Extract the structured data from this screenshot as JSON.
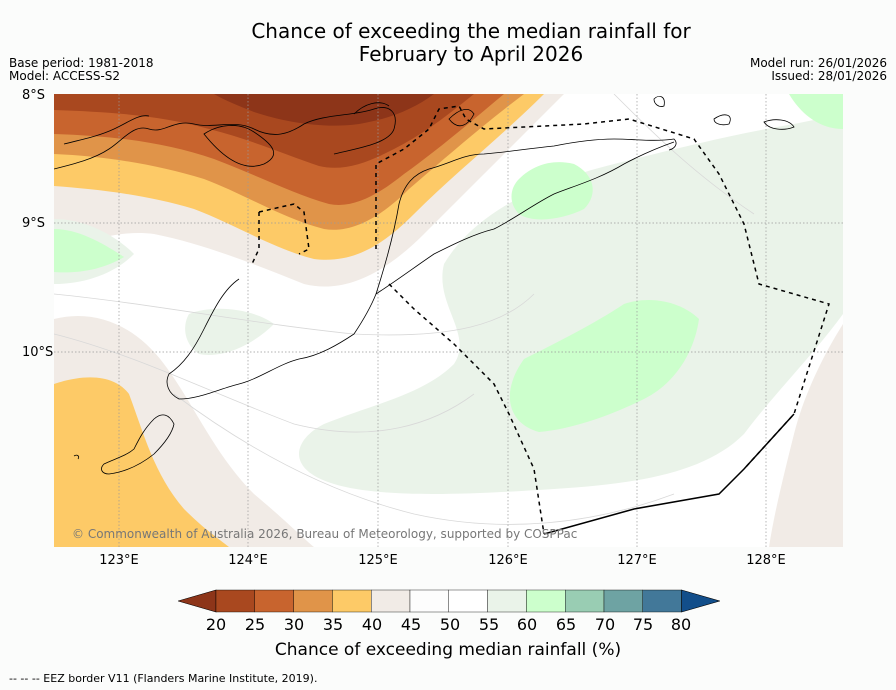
{
  "title": {
    "line1": "Chance of exceeding the median rainfall for",
    "line2": "February to April 2026"
  },
  "meta_left": {
    "base_period": "Base period: 1981-2018",
    "model": "Model: ACCESS-S2"
  },
  "meta_right": {
    "model_run": "Model run: 26/01/2026",
    "issued": "Issued: 28/01/2026"
  },
  "map": {
    "lat_labels": [
      "8°S",
      "9°S",
      "10°S"
    ],
    "lon_labels": [
      "123°E",
      "124°E",
      "125°E",
      "126°E",
      "127°E",
      "128°E"
    ],
    "copyright": "© Commonwealth of Australia 2026, Bureau of Meteorology, supported by COSPPac"
  },
  "colorbar": {
    "ticks": [
      "20",
      "25",
      "30",
      "35",
      "40",
      "45",
      "50",
      "55",
      "60",
      "65",
      "70",
      "75",
      "80"
    ],
    "colors": [
      "#8d3519",
      "#a9481f",
      "#c8642e",
      "#e09449",
      "#fdca67",
      "#f1ebe6",
      "#fdfdfd",
      "#ffffff",
      "#eaf3e9",
      "#ccffcc",
      "#99cdb3",
      "#6ea3a3",
      "#427899",
      "#124e8a"
    ],
    "title": "Chance of exceeding median rainfall (%)"
  },
  "footer": "--  --  -- EEZ border V11 (Flanders Marine Institute, 2019)."
}
